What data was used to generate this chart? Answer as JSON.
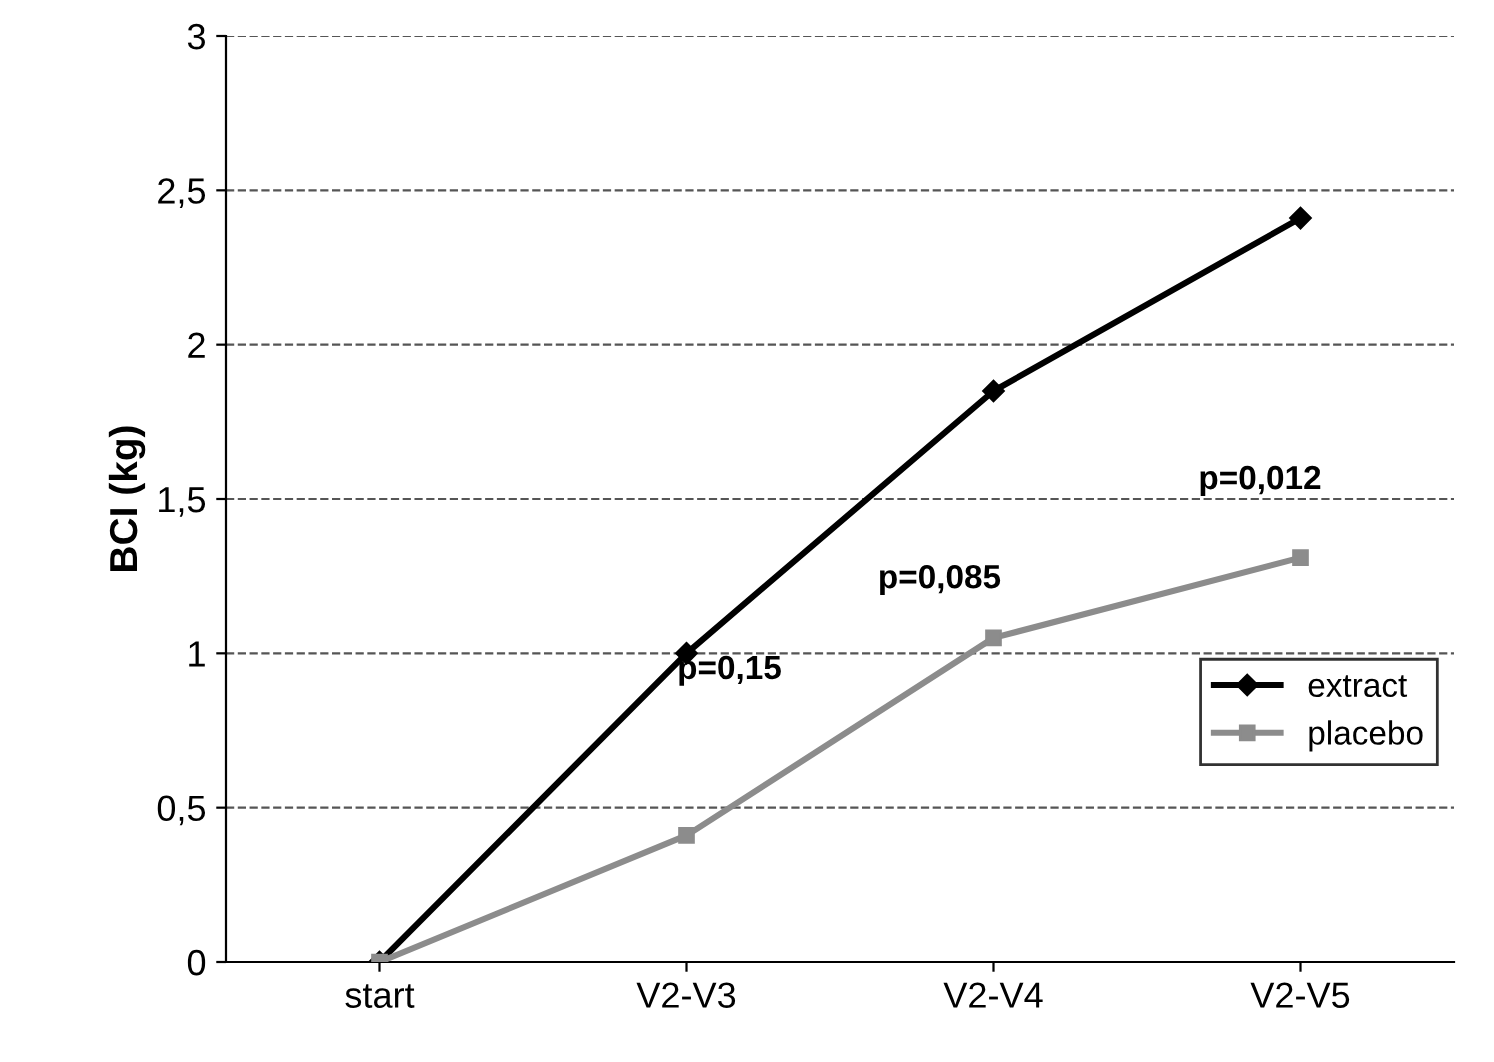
{
  "chart_data": {
    "type": "line",
    "ylabel": "BCI (kg)",
    "categories": [
      "start",
      "V2-V3",
      "V2-V4",
      "V2-V5"
    ],
    "series": [
      {
        "name": "extract",
        "color": "#000000",
        "marker": "diamond",
        "values": [
          0,
          1.0,
          1.85,
          2.41
        ]
      },
      {
        "name": "placebo",
        "color": "#8c8c8c",
        "marker": "square",
        "values": [
          0,
          0.41,
          1.05,
          1.31
        ]
      }
    ],
    "ylim": [
      0,
      3
    ],
    "yticks": [
      0,
      {
        "value": 0.5,
        "label": "0,5"
      },
      1,
      {
        "value": 1.5,
        "label": "1,5"
      },
      2,
      {
        "value": 2.5,
        "label": "2,5"
      },
      3
    ],
    "grid": "y",
    "legend": "right",
    "line_style": "solid",
    "annotations": [
      "p=0,15",
      "p=0,085",
      "p=0,012"
    ]
  }
}
